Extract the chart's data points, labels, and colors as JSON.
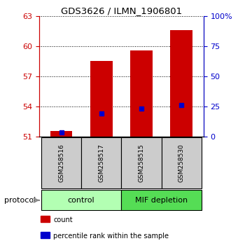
{
  "title": "GDS3626 / ILMN_1906801",
  "samples": [
    "GSM258516",
    "GSM258517",
    "GSM258515",
    "GSM258530"
  ],
  "bar_bottoms": [
    51,
    51,
    51,
    51
  ],
  "bar_tops": [
    51.55,
    58.5,
    59.55,
    61.6
  ],
  "percentile_values": [
    51.4,
    53.3,
    53.75,
    54.1
  ],
  "ylim_left": [
    51,
    63
  ],
  "ylim_right": [
    0,
    100
  ],
  "yticks_left": [
    51,
    54,
    57,
    60,
    63
  ],
  "yticks_right": [
    0,
    25,
    50,
    75,
    100
  ],
  "ytick_labels_right": [
    "0",
    "25",
    "50",
    "75",
    "100%"
  ],
  "bar_color": "#cc0000",
  "percentile_color": "#0000cc",
  "groups": [
    {
      "label": "control",
      "indices": [
        0,
        1
      ],
      "color": "#b3ffb3"
    },
    {
      "label": "MIF depletion",
      "indices": [
        2,
        3
      ],
      "color": "#55dd55"
    }
  ],
  "protocol_label": "protocol",
  "legend_items": [
    {
      "color": "#cc0000",
      "label": "count"
    },
    {
      "color": "#0000cc",
      "label": "percentile rank within the sample"
    }
  ],
  "bar_width": 0.55,
  "background_color": "#ffffff"
}
